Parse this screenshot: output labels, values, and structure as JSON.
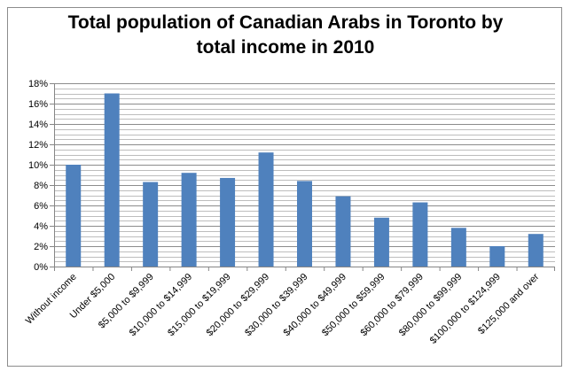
{
  "chart_data": {
    "type": "bar",
    "title_lines": [
      "Total population of Canadian Arabs in Toronto by",
      "total income in 2010"
    ],
    "xlabel": "",
    "ylabel": "",
    "categories": [
      "Without income",
      "Under $5,000",
      "$5,000 to $9,999",
      "$10,000 to $14,999",
      "$15,000 to $19,999",
      "$20,000 to $29,999",
      "$30,000 to $39,999",
      "$40,000 to $49,999",
      "$50,000 to $59,999",
      "$60,000 to $79,999",
      "$80,000 to $99,999",
      "$100,000 to $124,999",
      "$125,000 and over"
    ],
    "values": [
      10.0,
      17.0,
      8.3,
      9.2,
      8.7,
      11.2,
      8.4,
      6.9,
      4.8,
      6.3,
      3.8,
      2.0,
      3.2
    ],
    "ylim": [
      0,
      18
    ],
    "yticks": [
      "0%",
      "2%",
      "4%",
      "6%",
      "8%",
      "10%",
      "12%",
      "14%",
      "16%",
      "18%"
    ],
    "grid": "horizontal",
    "legend": "none",
    "colors": {
      "bar": "#4f81bd",
      "grid": "#999999",
      "axis": "#868686"
    }
  }
}
